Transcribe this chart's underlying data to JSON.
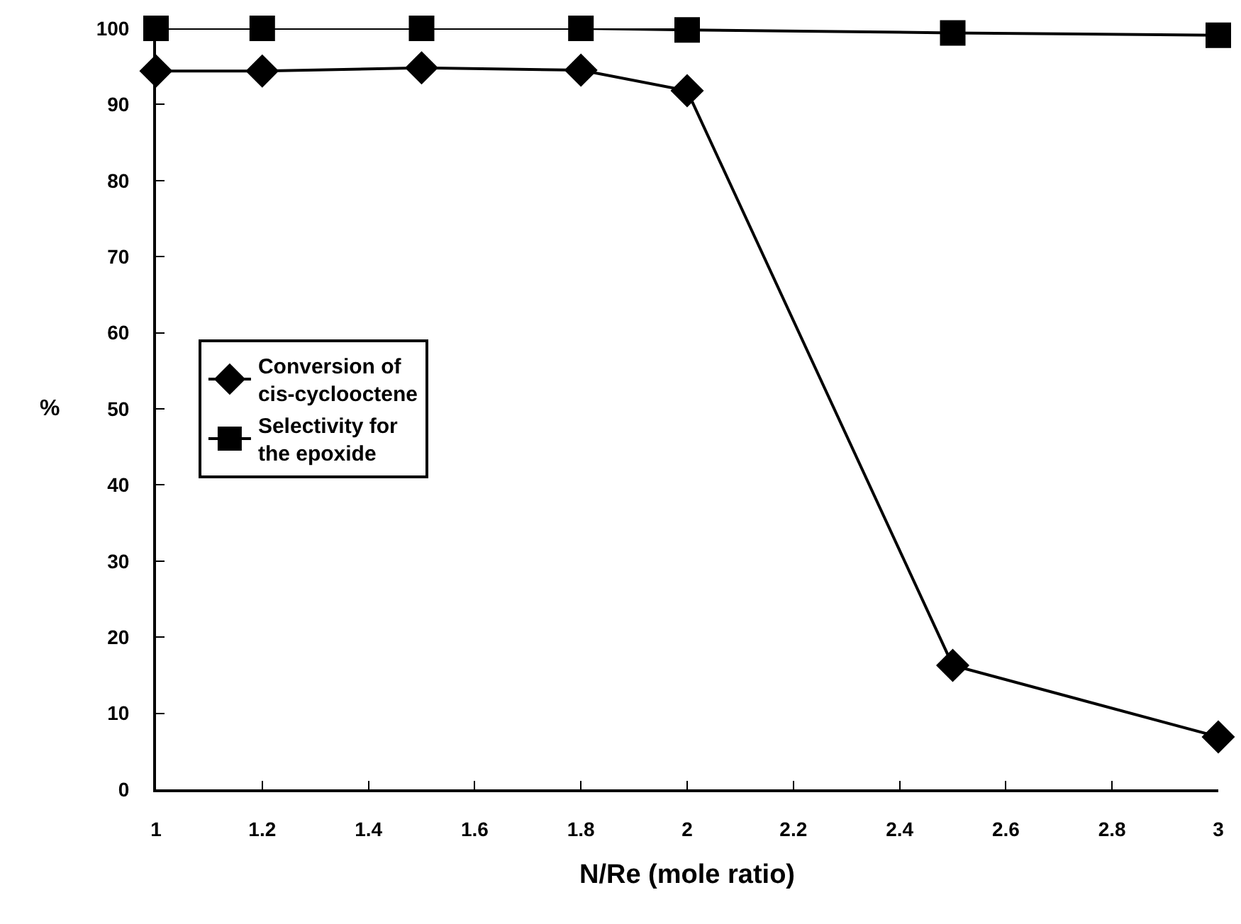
{
  "chart_data": {
    "type": "line",
    "xlabel": "N/Re (mole ratio)",
    "ylabel": "%",
    "x": [
      1,
      1.2,
      1.5,
      1.8,
      2,
      2.5,
      3
    ],
    "series": [
      {
        "name": "Conversion of cis-cyclooctene",
        "color": "#000000",
        "marker": "diamond",
        "values": [
          94.4,
          94.4,
          94.8,
          94.5,
          91.8,
          16.3,
          6.9
        ]
      },
      {
        "name": "Selectivity for the epoxide",
        "color": "#000000",
        "marker": "square",
        "values": [
          100,
          100,
          100,
          100,
          99.8,
          99.4,
          99.1
        ]
      }
    ],
    "xlim": [
      1,
      3
    ],
    "xticks": [
      1,
      1.2,
      1.4,
      1.6,
      1.8,
      2,
      2.2,
      2.4,
      2.6,
      2.8,
      3
    ],
    "ylim": [
      0,
      100
    ],
    "yticks": [
      0,
      10,
      20,
      30,
      40,
      50,
      60,
      70,
      80,
      90,
      100
    ],
    "grid": false,
    "legend": "left",
    "line_style": "solid"
  }
}
